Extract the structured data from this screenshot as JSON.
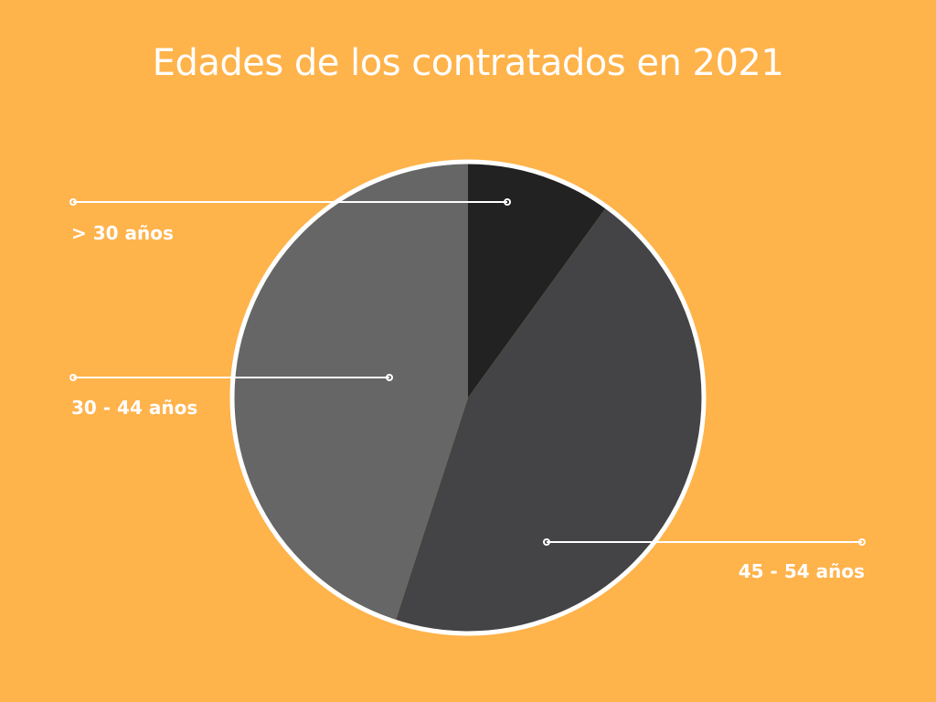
{
  "colors": {
    "background": "#FFB34B",
    "outline": "#ffffff",
    "text": "#ffffff"
  },
  "chart_data": {
    "type": "pie",
    "title": "Edades de los contratados en 2021",
    "start_angle_deg": 0,
    "direction": "clockwise",
    "slices": [
      {
        "label": "> 30 años",
        "value": 10,
        "color": "#222222"
      },
      {
        "label": "45 - 54 años",
        "value": 45,
        "color": "#444446"
      },
      {
        "label": "30 - 44 años",
        "value": 45,
        "color": "#666666"
      }
    ]
  }
}
